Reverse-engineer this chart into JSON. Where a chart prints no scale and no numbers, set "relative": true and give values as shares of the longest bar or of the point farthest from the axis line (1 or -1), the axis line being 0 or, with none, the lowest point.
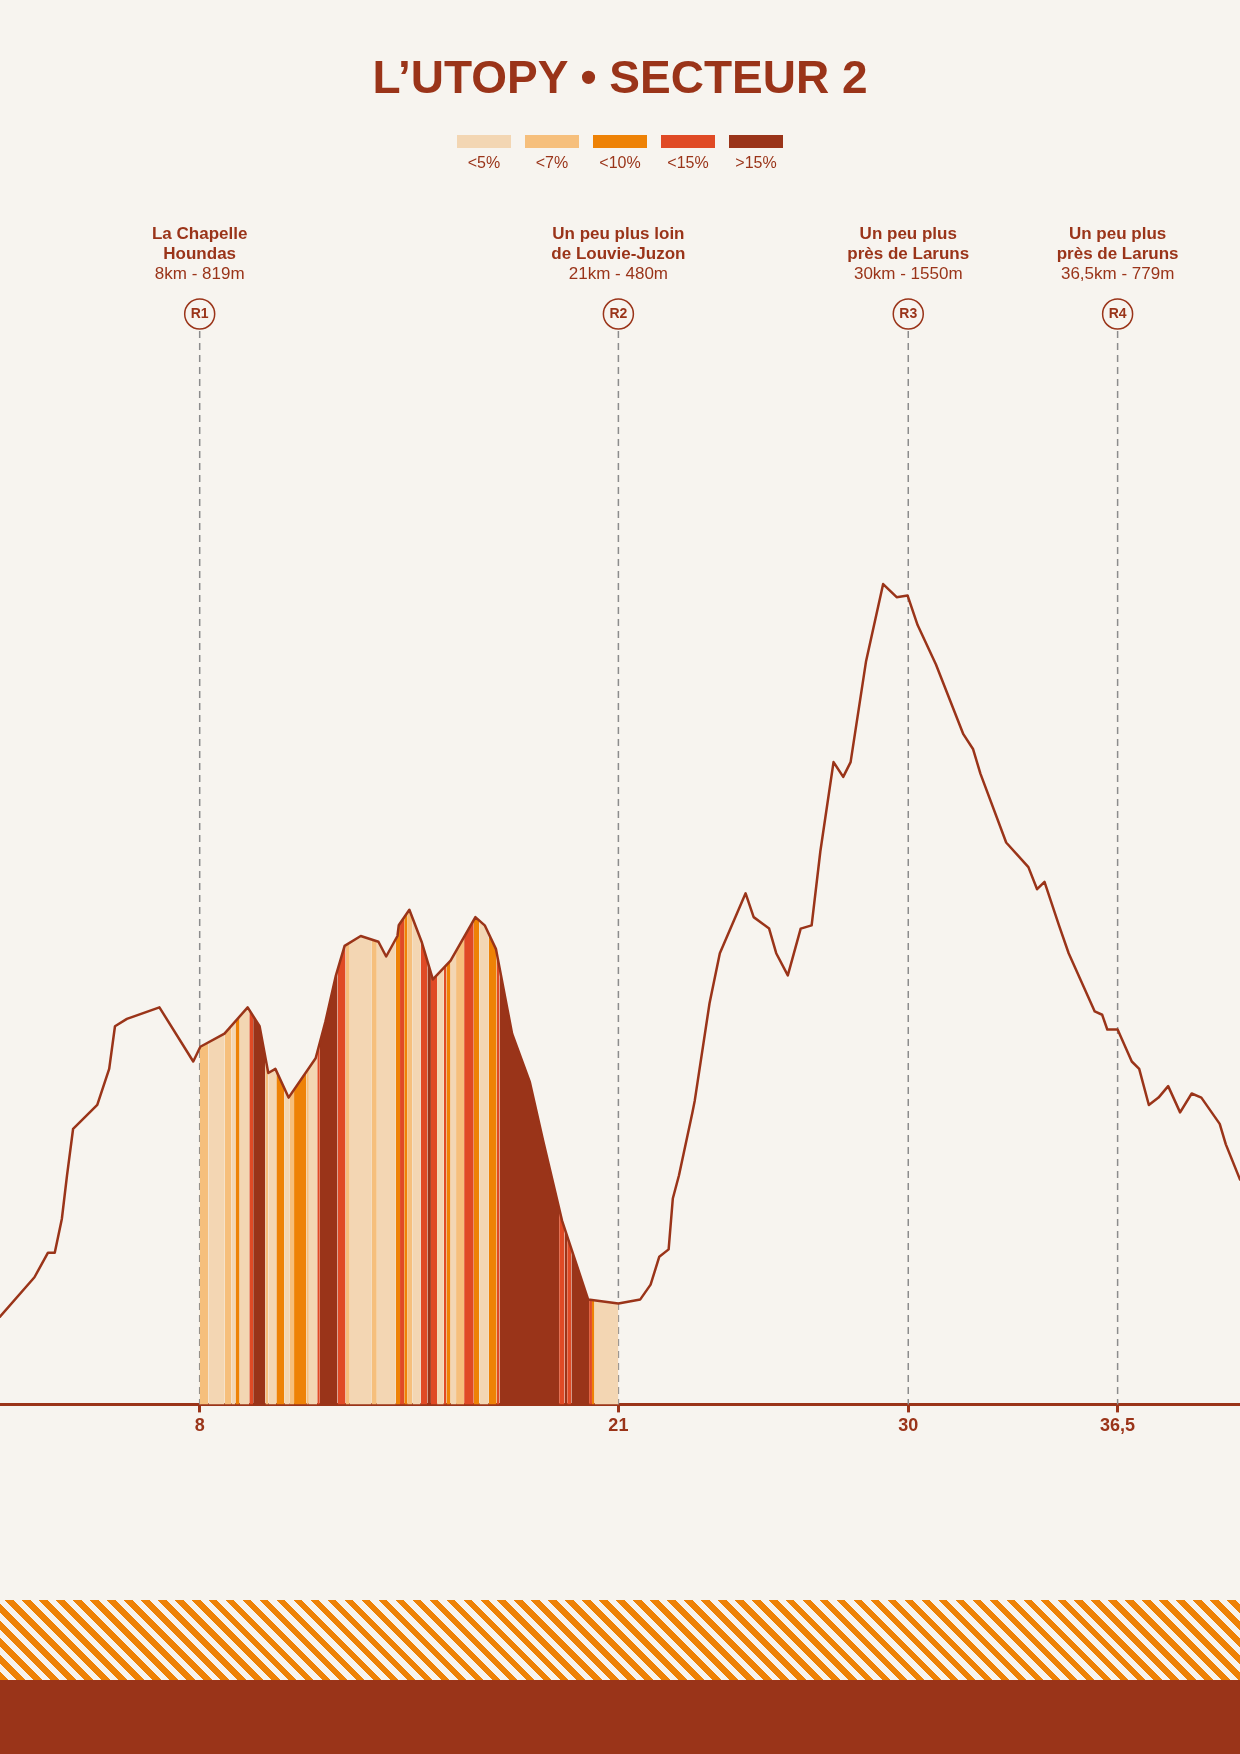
{
  "chart_data": {
    "type": "line",
    "title": "L’UTOPY • SECTEUR 2",
    "relative": true,
    "xlim": [
      1.8,
      40.3
    ],
    "xticks": [
      8,
      21,
      30,
      {
        "value": 36.5,
        "label": "36,5"
      }
    ],
    "tick_labels": "x",
    "legend": "top",
    "series": [
      {
        "type": "area",
        "name": "<5%",
        "color": "#f3d6b3",
        "x": [
          8.27,
          8.77,
          null,
          8.98,
          9.11,
          null,
          9.24,
          9.49,
          9.54,
          null,
          10.13,
          10.35,
          10.38,
          null,
          10.63,
          10.76,
          10.8,
          null,
          11.39,
          11.6,
          11.65,
          null,
          12.66,
          13.0,
          13.33,
          null,
          13.5,
          13.55,
          13.79,
          14.09,
          null,
          14.61,
          14.86,
          null,
          15.37,
          15.58,
          null,
          15.79,
          15.96,
          null,
          16.68,
          16.85,
          16.97,
          null,
          20.26,
          21.0
        ],
        "values": [
          0.441,
          0.452,
          null,
          0.461,
          0.467,
          null,
          0.473,
          0.484,
          0.481,
          null,
          0.404,
          0.409,
          0.406,
          null,
          0.385,
          0.374,
          0.376,
          null,
          0.41,
          0.422,
          0.429,
          null,
          0.563,
          0.571,
          0.567,
          null,
          0.565,
          0.564,
          0.546,
          0.567,
          null,
          0.593,
          0.567,
          null,
          0.523,
          0.532,
          null,
          0.541,
          0.553,
          null,
          0.59,
          0.584,
          0.574,
          null,
          0.127,
          0.123
        ]
      },
      {
        "type": "area",
        "name": "<7%",
        "color": "#f6bf7c",
        "x": [
          8.0,
          8.02,
          8.27,
          null,
          8.77,
          8.98,
          null,
          10.04,
          10.13,
          null,
          10.8,
          10.93,
          null,
          11.31,
          11.39,
          null,
          12.53,
          12.66,
          null,
          13.33,
          13.5,
          null,
          14.44,
          14.51,
          14.61,
          null,
          15.96,
          16.21
        ],
        "values": [
          0.434,
          0.436,
          0.441,
          null,
          0.452,
          0.461,
          null,
          0.423,
          0.404,
          null,
          0.376,
          0.384,
          null,
          0.405,
          0.41,
          null,
          0.56,
          0.563,
          null,
          0.567,
          0.565,
          null,
          0.599,
          0.603,
          0.593,
          null,
          0.553,
          0.57
        ]
      },
      {
        "type": "area",
        "name": "<10%",
        "color": "#ee8206",
        "x": [
          9.11,
          9.24,
          null,
          10.38,
          10.63,
          null,
          10.93,
          11.31,
          null,
          14.09,
          14.14,
          14.18,
          14.22,
          null,
          14.35,
          14.44,
          null,
          15.66,
          15.79,
          null,
          16.51,
          16.56,
          16.68,
          null,
          16.97,
          17.2,
          17.22,
          null,
          20.18,
          20.26
        ],
        "values": [
          0.467,
          0.473,
          null,
          0.406,
          0.385,
          null,
          0.384,
          0.405,
          null,
          0.567,
          0.571,
          0.584,
          0.586,
          null,
          0.593,
          0.599,
          null,
          0.536,
          0.541,
          null,
          0.591,
          0.594,
          0.59,
          null,
          0.574,
          0.555,
          0.551,
          null,
          0.127,
          0.127
        ]
      },
      {
        "type": "area",
        "name": "<15%",
        "color": "#e04a25",
        "x": [
          9.54,
          9.66,
          null,
          11.65,
          11.73,
          null,
          12.28,
          12.5,
          12.53,
          null,
          14.22,
          14.35,
          null,
          14.86,
          14.89,
          15.07,
          null,
          15.18,
          15.24,
          15.37,
          null,
          15.58,
          15.66,
          null,
          16.21,
          16.51,
          null,
          17.22,
          17.31,
          null,
          19.16,
          19.25,
          19.33,
          null,
          19.41,
          19.54,
          null,
          20.09,
          20.18
        ],
        "values": [
          0.481,
          0.473,
          null,
          0.429,
          0.441,
          null,
          0.53,
          0.559,
          0.56,
          null,
          0.586,
          0.593,
          null,
          0.567,
          0.564,
          0.54,
          null,
          0.526,
          0.518,
          0.523,
          null,
          0.532,
          0.536,
          null,
          0.57,
          0.591,
          null,
          0.551,
          0.532,
          null,
          0.239,
          0.224,
          0.215,
          null,
          0.205,
          0.19,
          null,
          0.128,
          0.127
        ]
      },
      {
        "type": "area",
        "name": ">15%",
        "color": "#9a3419",
        "x": [
          9.66,
          9.86,
          10.04,
          null,
          11.73,
          11.9,
          12.23,
          12.28,
          null,
          15.07,
          15.18,
          null,
          17.31,
          17.7,
          18.25,
          18.66,
          19.16,
          null,
          19.33,
          19.41,
          null,
          19.54,
          20.06,
          20.09
        ],
        "values": [
          0.473,
          0.461,
          0.423,
          null,
          0.441,
          0.466,
          0.523,
          0.53,
          null,
          0.54,
          0.526,
          null,
          0.532,
          0.452,
          0.393,
          0.322,
          0.239,
          null,
          0.215,
          0.205,
          null,
          0.19,
          0.128,
          0.128
        ]
      },
      {
        "type": "line",
        "color": "#9a3419",
        "x": [
          1.8,
          2.87,
          3.29,
          3.5,
          3.72,
          3.88,
          4.07,
          4.82,
          5.19,
          5.37,
          5.74,
          6.75,
          7.8,
          8.02,
          8.77,
          9.49,
          9.86,
          10.13,
          10.35,
          10.76,
          11.6,
          11.9,
          12.23,
          12.5,
          13.0,
          13.55,
          13.79,
          14.14,
          14.18,
          14.51,
          14.89,
          15.24,
          15.79,
          16.56,
          16.85,
          17.2,
          17.7,
          18.25,
          18.66,
          19.25,
          20.06,
          21.0,
          21.68,
          22.0,
          22.27,
          22.56,
          22.69,
          22.88,
          23.3,
          23.37,
          23.83,
          24.15,
          24.95,
          25.2,
          25.68,
          25.9,
          26.26,
          26.66,
          27.0,
          27.27,
          27.68,
          27.98,
          28.21,
          28.69,
          29.22,
          29.64,
          29.98,
          30.29,
          30.86,
          31.71,
          32.01,
          32.24,
          33.04,
          33.73,
          34.0,
          34.23,
          34.68,
          34.98,
          35.79,
          36.02,
          36.18,
          36.5,
          36.94,
          37.17,
          37.47,
          37.77,
          38.07,
          38.44,
          38.8,
          39.1,
          39.67,
          39.86,
          40.3
        ],
        "values": [
          0.107,
          0.155,
          0.185,
          0.185,
          0.226,
          0.279,
          0.336,
          0.365,
          0.409,
          0.461,
          0.47,
          0.484,
          0.418,
          0.436,
          0.452,
          0.484,
          0.461,
          0.404,
          0.409,
          0.374,
          0.422,
          0.466,
          0.523,
          0.559,
          0.571,
          0.564,
          0.546,
          0.571,
          0.584,
          0.603,
          0.564,
          0.518,
          0.541,
          0.594,
          0.584,
          0.555,
          0.452,
          0.393,
          0.322,
          0.224,
          0.128,
          0.123,
          0.128,
          0.146,
          0.18,
          0.189,
          0.251,
          0.279,
          0.356,
          0.37,
          0.489,
          0.55,
          0.623,
          0.594,
          0.58,
          0.55,
          0.523,
          0.58,
          0.584,
          0.674,
          0.783,
          0.765,
          0.783,
          0.906,
          1.0,
          0.984,
          0.986,
          0.95,
          0.902,
          0.817,
          0.799,
          0.769,
          0.685,
          0.655,
          0.628,
          0.637,
          0.584,
          0.55,
          0.479,
          0.475,
          0.457,
          0.457,
          0.418,
          0.409,
          0.365,
          0.374,
          0.388,
          0.356,
          0.379,
          0.374,
          0.342,
          0.317,
          0.274
        ]
      }
    ],
    "ref_lines": [
      {
        "axis": "x",
        "value": 8,
        "label": "R1",
        "color": "#8c8c8c",
        "line_style": "dashed"
      },
      {
        "axis": "x",
        "value": 21,
        "label": "R2",
        "color": "#8c8c8c",
        "line_style": "dashed"
      },
      {
        "axis": "x",
        "value": 30,
        "label": "R3",
        "color": "#8c8c8c",
        "line_style": "dashed"
      },
      {
        "axis": "x",
        "value": 36.5,
        "label": "R4",
        "color": "#8c8c8c",
        "line_style": "dashed"
      }
    ],
    "annotations": [
      "La Chapelle\nHoundas\n8km - 819m",
      "Un peu plus loin\nde Louvie-Juzon\n21km - 480m",
      "Un peu plus\nprès de Laruns\n30km - 1550m",
      "Un peu plus\nprès de Laruns\n36,5km - 779m"
    ]
  }
}
